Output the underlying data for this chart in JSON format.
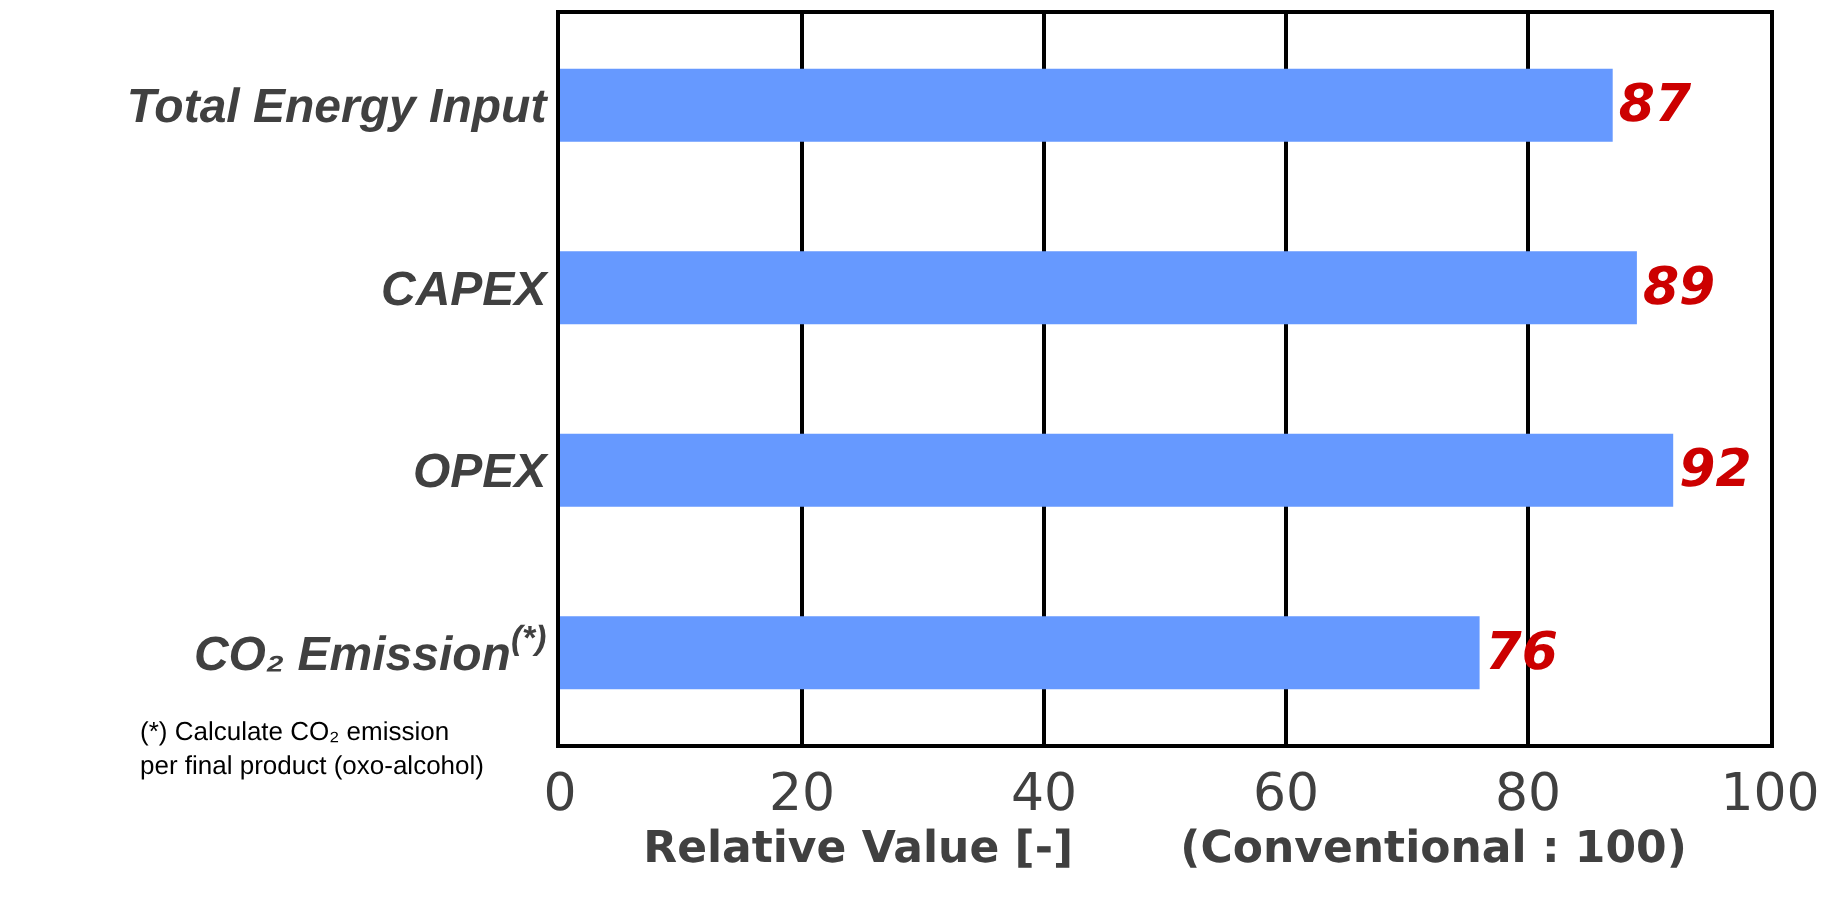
{
  "chart_data": {
    "type": "bar",
    "orientation": "horizontal",
    "categories": [
      "Total Energy Input",
      "CAPEX",
      "OPEX",
      "CO₂ Emission$^{(*)}$"
    ],
    "values": [
      87,
      89,
      92,
      76
    ],
    "color": "#6699ff",
    "data_labels": true,
    "xlim": [
      0,
      100
    ],
    "xticks": [
      0,
      20,
      40,
      60,
      80,
      100
    ],
    "xlabel": "Relative Value [-]       (Conventional : 100)",
    "grid": "x",
    "annotations": [
      "(*) Calculate CO₂ emission\nper final product (oxo-alcohol)"
    ]
  }
}
